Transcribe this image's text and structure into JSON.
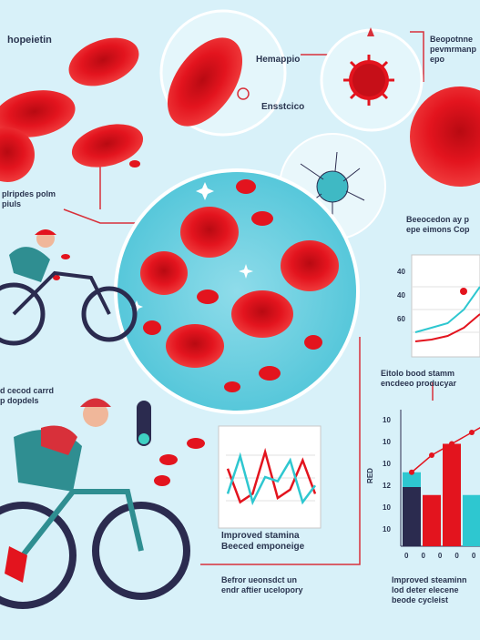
{
  "colors": {
    "background": "#d8f1f9",
    "cell_red": "#e3141e",
    "cell_dark": "#a80b12",
    "teal": "#2ec7d0",
    "navy": "#2b2b4f",
    "jersey_red": "#d8303a",
    "jersey_teal": "#2f8e91"
  },
  "labels": {
    "top_left": "hopeietin",
    "hemoglobin": "Hemappio",
    "enzymes": "Ensstcico",
    "top_right": [
      "Beopotnne",
      "pevmrmanp",
      "epo"
    ],
    "left_mid": [
      "plripdes polm",
      "piuls"
    ],
    "left_lower": [
      "d cecod carrd",
      "p dopdels"
    ],
    "right_mid": [
      "Beeocedon ay p",
      "epe eimons Cop"
    ],
    "right_lower": [
      "Eitolo bood stamm",
      "encdeeo producyar"
    ],
    "improved_center": [
      "Improved stamina",
      "Beeced emponeige"
    ],
    "before_after": [
      "Befror ueonsdct un",
      "endr aftier ucelopory"
    ],
    "improved_right": [
      "Improved steaminn",
      "lod deter elecene",
      "beode cycleist"
    ]
  },
  "axes": {
    "top_right_ticks": [
      "40",
      "40",
      "60"
    ],
    "bar_y_ticks": [
      "10",
      "10",
      "10",
      "12",
      "10",
      "10"
    ],
    "bar_x_ticks": [
      "0",
      "0",
      "0",
      "0",
      "0"
    ],
    "bar_ylabel": "RED"
  },
  "chart_data": [
    {
      "type": "line",
      "title": "",
      "ylabel": "",
      "xlabel": "",
      "yticks": [
        "40",
        "40",
        "60"
      ],
      "series": [
        {
          "values": [
            0.2,
            0.25,
            0.3,
            0.45,
            0.7
          ]
        },
        {
          "values": [
            0.1,
            0.12,
            0.16,
            0.25,
            0.4
          ]
        }
      ]
    },
    {
      "type": "line",
      "title": "",
      "series": [
        {
          "values": [
            0.6,
            0.2,
            0.3,
            0.8,
            0.25,
            0.35,
            0.7,
            0.3
          ]
        },
        {
          "values": [
            0.3,
            0.75,
            0.2,
            0.5,
            0.45,
            0.7,
            0.2,
            0.4
          ]
        }
      ]
    },
    {
      "type": "bar",
      "title": "",
      "ylabel": "RED",
      "categories": [
        "0",
        "0",
        "0",
        "0",
        "0"
      ],
      "series": [
        {
          "values": [
            6.5,
            4.5,
            9,
            4.5,
            10
          ]
        },
        {
          "values": [
            3,
            0,
            0,
            0,
            0
          ]
        }
      ],
      "trend": [
        6.5,
        8,
        9,
        10,
        11
      ]
    }
  ]
}
